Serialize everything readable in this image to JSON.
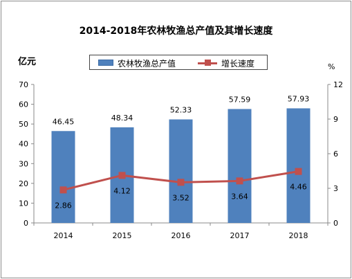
{
  "chart_data": {
    "type": "bar",
    "title": "2014-2018年农林牧渔总产值及其增长速度",
    "categories": [
      "2014",
      "2015",
      "2016",
      "2017",
      "2018"
    ],
    "series": [
      {
        "name": "农林牧渔总产值",
        "type": "bar",
        "axis": "left",
        "values": [
          46.45,
          48.34,
          52.33,
          57.59,
          57.93
        ]
      },
      {
        "name": "增长速度",
        "type": "line",
        "axis": "right",
        "values": [
          2.86,
          4.12,
          3.52,
          3.64,
          4.46
        ]
      }
    ],
    "y_left_label": "亿元",
    "y_left_range": [
      0,
      70
    ],
    "y_left_ticks": [
      "0",
      "10",
      "20",
      "30",
      "40",
      "50",
      "60",
      "70"
    ],
    "y_right_label": "%",
    "y_right_range": [
      0,
      12
    ],
    "y_right_ticks": [
      "0",
      "3",
      "6",
      "9",
      "12"
    ],
    "bar_labels": [
      "46.45",
      "48.34",
      "52.33",
      "57.59",
      "57.93"
    ],
    "line_labels": [
      "2.86",
      "4.12",
      "3.52",
      "3.64",
      "4.46"
    ],
    "legend_position": "top",
    "grid": false,
    "colors": {
      "bar": "#4f81bd",
      "line": "#c0504d"
    }
  }
}
